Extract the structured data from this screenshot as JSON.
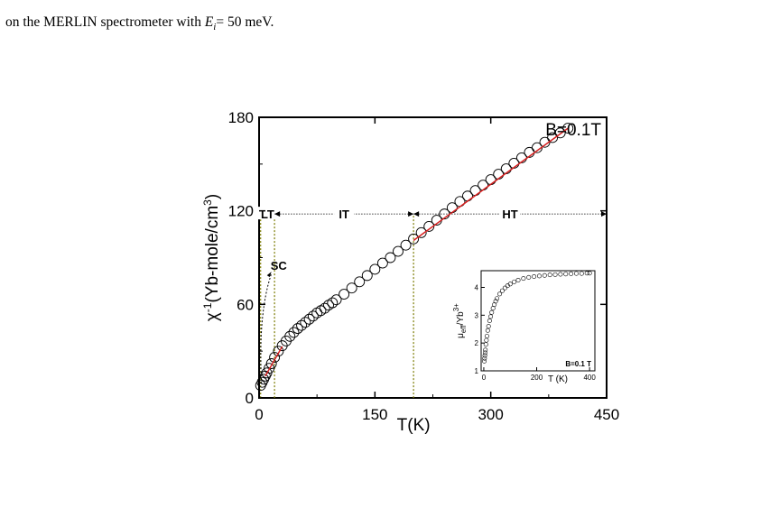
{
  "caption": {
    "pre": "on the MERLIN spectrometer with ",
    "var_main": "E",
    "var_sub": "i",
    "post": "= 50 meV."
  },
  "chart_data": [
    {
      "type": "scatter",
      "xlabel": "T(K)",
      "ylabel_base": "χ",
      "ylabel_sup": "-1",
      "ylabel_rest": "(Yb-mole/cm",
      "ylabel_unit_sup": "3",
      "ylabel_close": ")",
      "field_label": "B=0.1T",
      "xlim": [
        0,
        450
      ],
      "ylim": [
        0,
        180
      ],
      "xticks": [
        0,
        150,
        300,
        450
      ],
      "yticks": [
        0,
        60,
        120,
        180
      ],
      "series": [
        {
          "marker": "open-circle",
          "x": [
            2,
            4,
            6,
            8,
            10,
            13,
            16,
            20,
            25,
            30,
            35,
            40,
            45,
            50,
            55,
            60,
            65,
            70,
            75,
            80,
            85,
            90,
            95,
            100,
            110,
            120,
            130,
            140,
            150,
            160,
            170,
            180,
            190,
            200,
            210,
            220,
            230,
            240,
            250,
            260,
            270,
            280,
            290,
            300,
            310,
            320,
            330,
            340,
            350,
            360,
            370,
            380,
            390,
            400
          ],
          "y": [
            8,
            10,
            12,
            14,
            16,
            19,
            22,
            26,
            30,
            33.5,
            36.5,
            39.5,
            42,
            44.5,
            46.5,
            48.5,
            50.5,
            52.5,
            54.5,
            56,
            57.5,
            59.5,
            61,
            63,
            66.5,
            70.5,
            74.5,
            78.5,
            82.5,
            86.5,
            90,
            94,
            98,
            102,
            106,
            110,
            114,
            118,
            122,
            126,
            129.5,
            133,
            136.5,
            140,
            143.5,
            147,
            150.5,
            154,
            157.5,
            160.5,
            164,
            167,
            170,
            173
          ]
        }
      ],
      "fits": [
        {
          "color": "#d62020",
          "x": [
            8,
            30
          ],
          "y": [
            14,
            33
          ]
        },
        {
          "color": "#d62020",
          "x": [
            200,
            400
          ],
          "y": [
            101,
            173
          ]
        }
      ],
      "regions": [
        {
          "label": "LT",
          "x_from": 2,
          "x_to": 20
        },
        {
          "label": "IT",
          "x_from": 20,
          "x_to": 200
        },
        {
          "label": "HT",
          "x_from": 200,
          "x_to": 450
        }
      ],
      "region_y": 118,
      "region_boundaries_x": [
        2,
        20,
        200
      ],
      "annotation": {
        "text": "SC",
        "arrow_to_x": 2,
        "arrow_to_y": 8
      },
      "colors": {
        "marker": "#000000",
        "fit": "#d62020",
        "boundary": "#7a7a00",
        "arrow": "#000000"
      }
    },
    {
      "type": "scatter",
      "role": "inset",
      "xlabel": "T (K)",
      "ylabel_base": "μ",
      "ylabel_sub": "eff",
      "ylabel_rest": "/Yb",
      "ylabel_sup": "3+",
      "field_label": "B=0.1 T",
      "xlim": [
        -10,
        420
      ],
      "ylim": [
        1,
        4.6
      ],
      "xticks": [
        0,
        200,
        400
      ],
      "yticks": [
        1,
        2,
        3,
        4
      ],
      "series": [
        {
          "marker": "open-circle",
          "x": [
            2,
            3,
            4,
            5,
            6,
            8,
            10,
            12,
            15,
            18,
            22,
            26,
            30,
            35,
            40,
            45,
            50,
            60,
            70,
            80,
            90,
            100,
            115,
            130,
            150,
            170,
            190,
            210,
            230,
            250,
            270,
            290,
            310,
            330,
            350,
            370,
            390,
            400
          ],
          "y": [
            1.35,
            1.45,
            1.55,
            1.65,
            1.75,
            1.95,
            2.1,
            2.25,
            2.45,
            2.6,
            2.8,
            2.95,
            3.1,
            3.25,
            3.38,
            3.5,
            3.6,
            3.76,
            3.88,
            3.98,
            4.06,
            4.12,
            4.2,
            4.26,
            4.32,
            4.36,
            4.39,
            4.41,
            4.43,
            4.45,
            4.46,
            4.47,
            4.48,
            4.49,
            4.5,
            4.5,
            4.51,
            4.51
          ]
        }
      ]
    }
  ]
}
